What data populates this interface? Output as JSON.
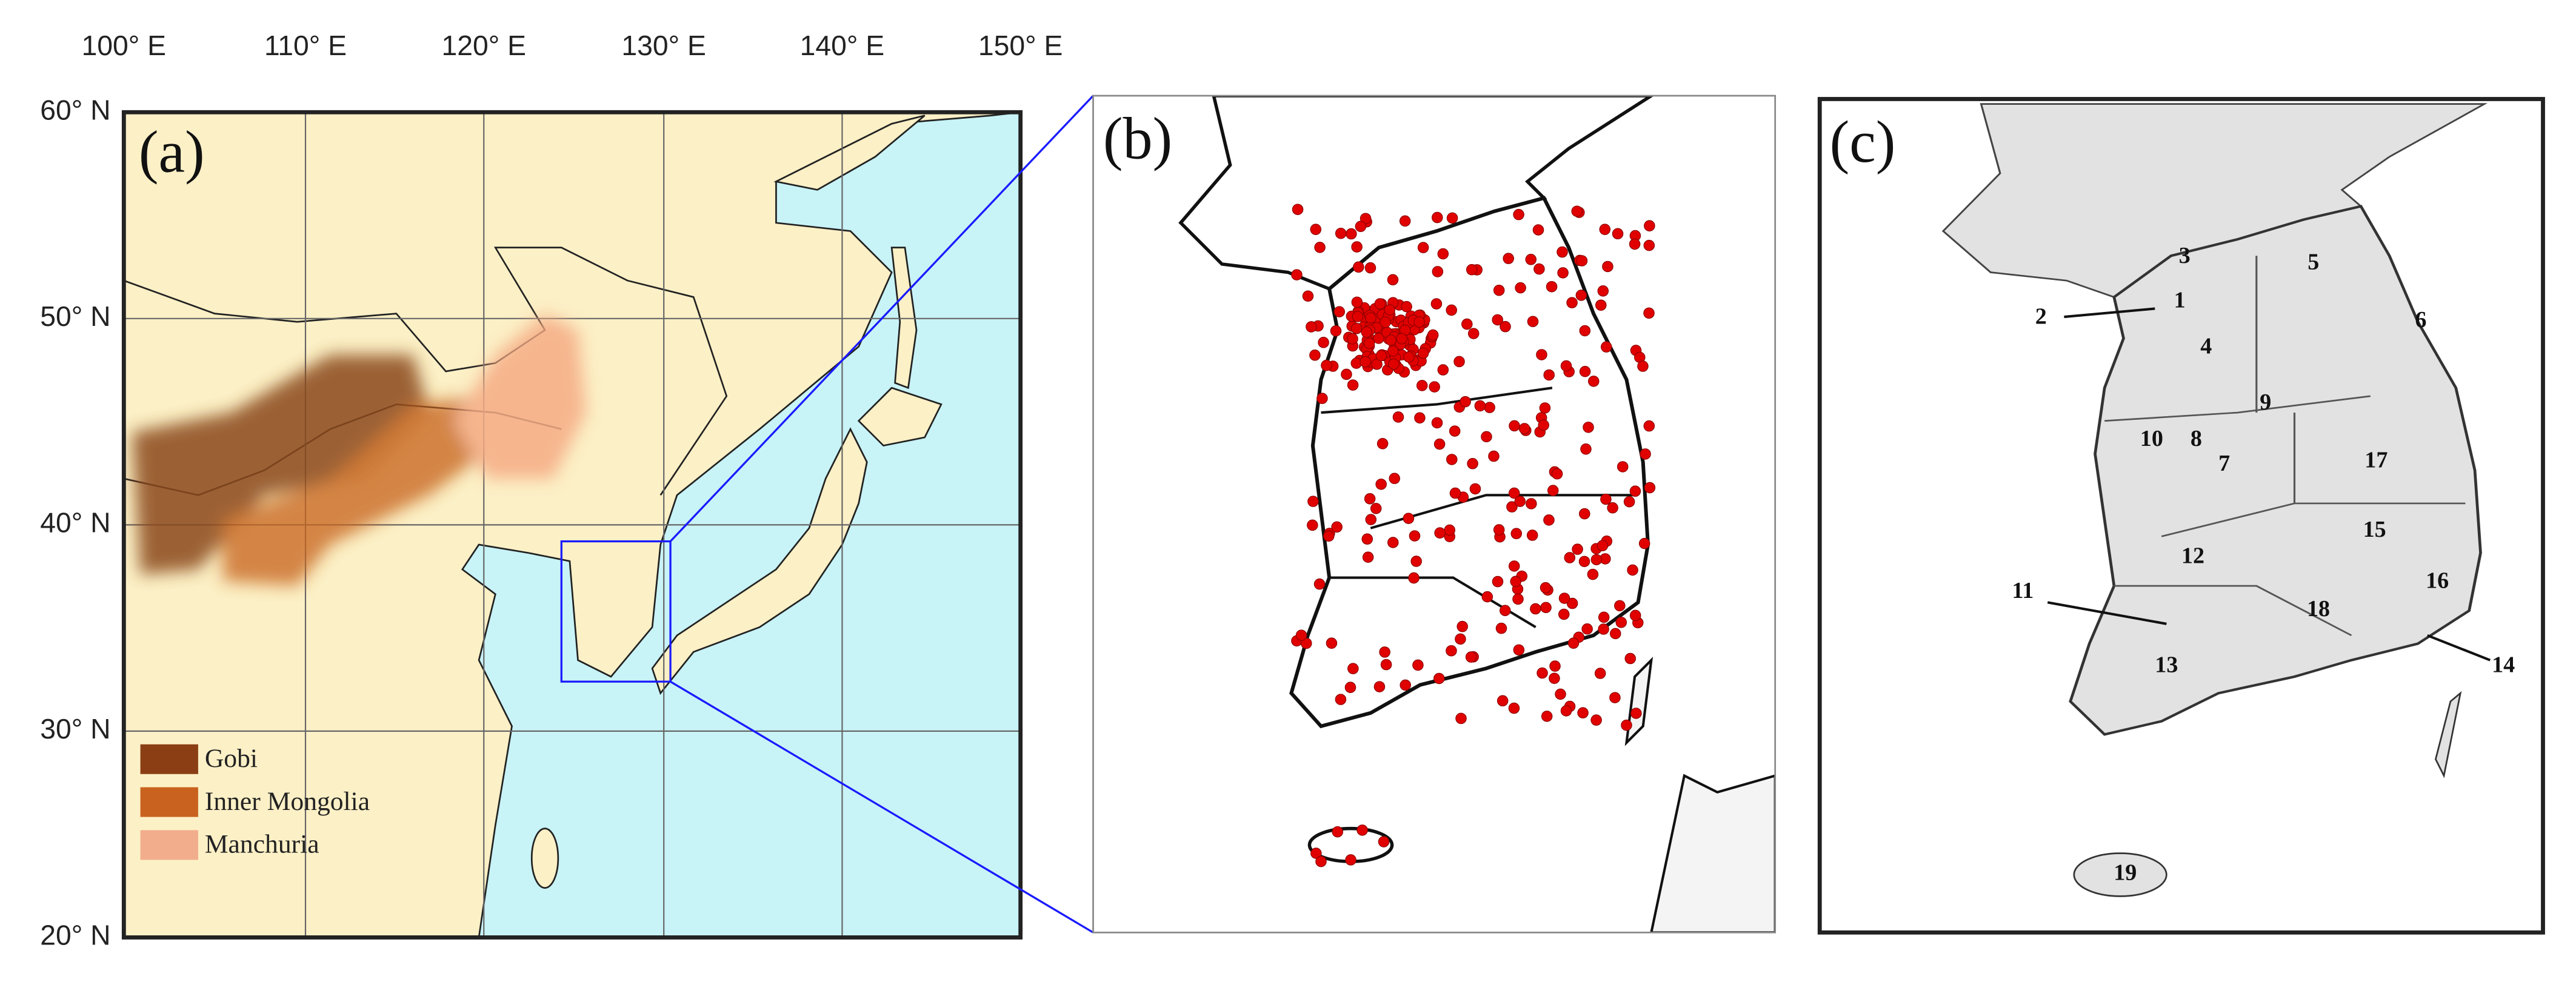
{
  "panel_a": {
    "label": "(a)",
    "lon_ticks": [
      "100° E",
      "110° E",
      "120° E",
      "130° E",
      "140° E",
      "150° E"
    ],
    "lat_ticks": [
      "60° N",
      "50° N",
      "40° N",
      "30° N",
      "20° N"
    ],
    "legend": [
      "Gobi",
      "Inner Mongolia",
      "Manchuria"
    ]
  },
  "panel_b": {
    "label": "(b)"
  },
  "panel_c": {
    "label": "(c)",
    "regions": [
      "1",
      "2",
      "3",
      "4",
      "5",
      "6",
      "7",
      "8",
      "9",
      "10",
      "11",
      "12",
      "13",
      "14",
      "15",
      "16",
      "17",
      "18",
      "19"
    ]
  }
}
